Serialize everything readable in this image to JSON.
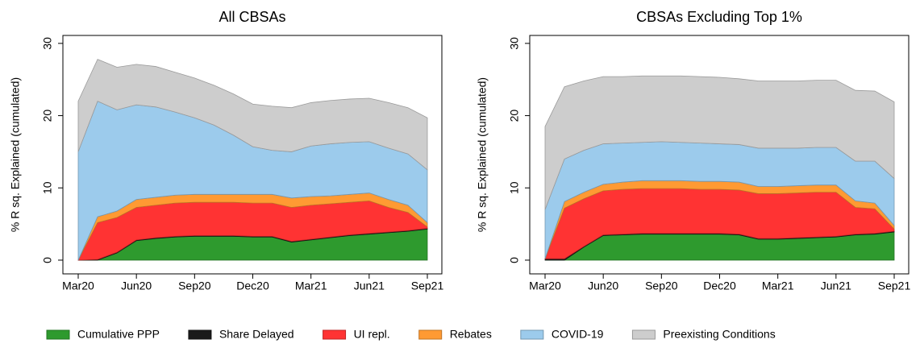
{
  "chart_data": [
    {
      "type": "stacked-area",
      "title": "All CBSAs",
      "y_label": "% R sq. Explained (cumulated)",
      "categories": [
        "Mar20",
        null,
        null,
        "Jun20",
        null,
        null,
        "Sep20",
        null,
        null,
        "Dec20",
        null,
        null,
        "Mar21",
        null,
        null,
        "Jun21",
        null,
        null,
        "Sep21"
      ],
      "ylim": [
        -1.9,
        31.1
      ],
      "yticks": [
        0,
        10,
        20,
        30
      ],
      "series": [
        {
          "values": [
            0,
            0,
            1,
            2.7,
            3,
            3.2,
            3.3,
            3.3,
            3.3,
            3.2,
            3.2,
            2.5,
            2.8,
            3.1,
            3.4,
            3.6,
            3.8,
            4,
            4.3
          ]
        },
        {
          "values": [
            0,
            0.1,
            0.1,
            0.1,
            0.1,
            0.1,
            0.1,
            0.1,
            0.1,
            0.1,
            0.1,
            0.1,
            0.1,
            0.1,
            0.1,
            0.1,
            0.1,
            0.1,
            0.1
          ]
        },
        {
          "values": [
            0,
            5.1,
            4.8,
            4.5,
            4.5,
            4.6,
            4.6,
            4.6,
            4.6,
            4.6,
            4.6,
            4.7,
            4.7,
            4.6,
            4.5,
            4.5,
            3.4,
            2.5,
            0.2
          ]
        },
        {
          "values": [
            0,
            0.8,
            0.9,
            1.1,
            1.1,
            1.1,
            1.1,
            1.1,
            1.1,
            1.2,
            1.2,
            1.3,
            1.2,
            1.1,
            1.1,
            1.1,
            1.1,
            1.0,
            0.6
          ]
        },
        {
          "values": [
            15,
            16,
            14,
            13.1,
            12.5,
            11.5,
            10.6,
            9.6,
            8.2,
            6.6,
            6.1,
            6.4,
            7,
            7.2,
            7.2,
            7.1,
            7.1,
            7.1,
            7.3
          ]
        },
        {
          "values": [
            7,
            5.8,
            5.9,
            5.6,
            5.6,
            5.5,
            5.5,
            5.5,
            5.7,
            5.9,
            6.1,
            6.1,
            6,
            6,
            6,
            6,
            6.3,
            6.4,
            7.2
          ]
        }
      ]
    },
    {
      "type": "stacked-area",
      "title": "CBSAs Excluding Top 1%",
      "y_label": "% R sq. Explained (cumulated)",
      "categories": [
        "Mar20",
        null,
        null,
        "Jun20",
        null,
        null,
        "Sep20",
        null,
        null,
        "Dec20",
        null,
        null,
        "Mar21",
        null,
        null,
        "Jun21",
        null,
        null,
        "Sep21"
      ],
      "ylim": [
        -1.9,
        31.1
      ],
      "yticks": [
        0,
        10,
        20,
        30
      ],
      "series": [
        {
          "values": [
            0,
            0,
            1.8,
            3.4,
            3.5,
            3.6,
            3.6,
            3.6,
            3.6,
            3.6,
            3.5,
            2.9,
            2.9,
            3.0,
            3.1,
            3.2,
            3.5,
            3.6,
            3.9
          ]
        },
        {
          "values": [
            0.2,
            0.2,
            0.1,
            0.1,
            0.1,
            0.1,
            0.1,
            0.1,
            0.1,
            0.1,
            0.1,
            0.1,
            0.1,
            0.1,
            0.1,
            0.1,
            0.1,
            0.1,
            0.1
          ]
        },
        {
          "values": [
            0,
            7.0,
            6.6,
            6.1,
            6.2,
            6.2,
            6.2,
            6.2,
            6.1,
            6.1,
            6.1,
            6.2,
            6.2,
            6.2,
            6.2,
            6.1,
            3.7,
            3.4,
            0.3
          ]
        },
        {
          "values": [
            0,
            0.9,
            0.9,
            0.9,
            1,
            1.1,
            1.1,
            1.1,
            1.1,
            1.1,
            1.1,
            1,
            1,
            1,
            1,
            1,
            0.9,
            0.8,
            0.5
          ]
        },
        {
          "values": [
            6.8,
            5.9,
            5.8,
            5.6,
            5.4,
            5.3,
            5.4,
            5.3,
            5.3,
            5.2,
            5.2,
            5.3,
            5.3,
            5.2,
            5.2,
            5.2,
            5.5,
            5.8,
            6.5
          ]
        },
        {
          "values": [
            11.5,
            10,
            9.6,
            9.3,
            9.2,
            9.2,
            9.1,
            9.2,
            9.2,
            9.2,
            9.1,
            9.3,
            9.3,
            9.3,
            9.3,
            9.3,
            9.8,
            9.7,
            10.6
          ]
        }
      ]
    }
  ],
  "legend": [
    {
      "name": "Cumulative PPP",
      "color": "#2e9a2e"
    },
    {
      "name": "Share Delayed",
      "color": "#1a1a1a"
    },
    {
      "name": "UI repl.",
      "color": "#ff3333"
    },
    {
      "name": "Rebates",
      "color": "#ff9a33"
    },
    {
      "name": "COVID-19",
      "color": "#9ccbec"
    },
    {
      "name": "Preexisting Conditions",
      "color": "#cdcdcd"
    }
  ]
}
